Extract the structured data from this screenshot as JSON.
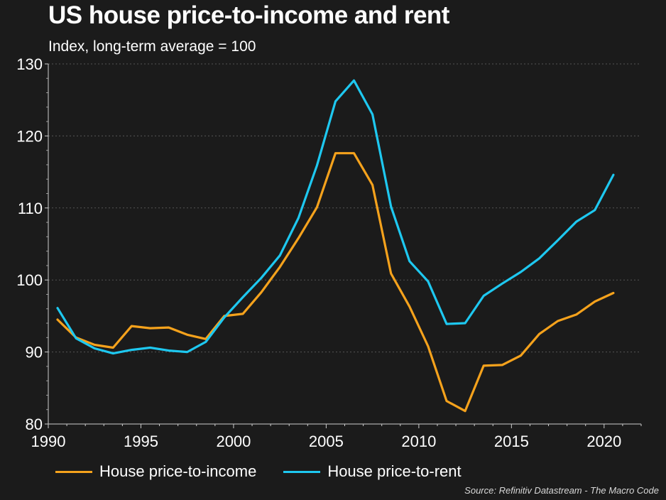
{
  "title": "US house price-to-income and rent",
  "subtitle": "Index, long-term average = 100",
  "source": "Source: Refinitiv Datastream - The Macro Code",
  "colors": {
    "background": "#1b1b1b",
    "income": "#f5a21c",
    "rent": "#1ec8f0",
    "grid": "#555555"
  },
  "chart_data": {
    "type": "line",
    "title": "US house price-to-income and rent",
    "subtitle": "Index, long-term average = 100",
    "xlim": [
      1990,
      2022
    ],
    "ylim": [
      80,
      130
    ],
    "x_ticks": [
      1990,
      1995,
      2000,
      2005,
      2010,
      2015,
      2020
    ],
    "y_ticks": [
      80,
      90,
      100,
      110,
      120,
      130
    ],
    "grid": "horizontal dotted",
    "legend": "bottom",
    "x": [
      1990.5,
      1991.5,
      1992.5,
      1993.5,
      1994.5,
      1995.5,
      1996.5,
      1997.5,
      1998.5,
      1999.5,
      2000.5,
      2001.5,
      2002.5,
      2003.5,
      2004.5,
      2005.5,
      2006.5,
      2007.5,
      2008.5,
      2009.5,
      2010.5,
      2011.5,
      2012.5,
      2013.5,
      2014.5,
      2015.5,
      2016.5,
      2017.5,
      2018.5,
      2019.5,
      2020.5
    ],
    "series": [
      {
        "name": "House price-to-income",
        "color": "#f5a21c",
        "values": [
          94.5,
          92.0,
          91.0,
          90.6,
          93.6,
          93.3,
          93.4,
          92.4,
          91.8,
          95.0,
          95.3,
          98.3,
          101.8,
          105.8,
          110.1,
          117.6,
          117.6,
          113.2,
          100.9,
          96.3,
          90.8,
          83.2,
          81.8,
          88.1,
          88.2,
          89.5,
          92.5,
          94.3,
          95.2,
          97.0,
          98.2
        ]
      },
      {
        "name": "House price-to-rent",
        "color": "#1ec8f0",
        "values": [
          96.1,
          91.9,
          90.5,
          89.8,
          90.3,
          90.6,
          90.2,
          90.0,
          91.4,
          94.8,
          97.6,
          100.3,
          103.4,
          108.6,
          115.9,
          124.8,
          127.7,
          123.0,
          110.2,
          102.6,
          99.8,
          93.9,
          94.0,
          97.8,
          99.5,
          101.1,
          103.0,
          105.5,
          108.1,
          109.7,
          114.6
        ]
      }
    ]
  }
}
